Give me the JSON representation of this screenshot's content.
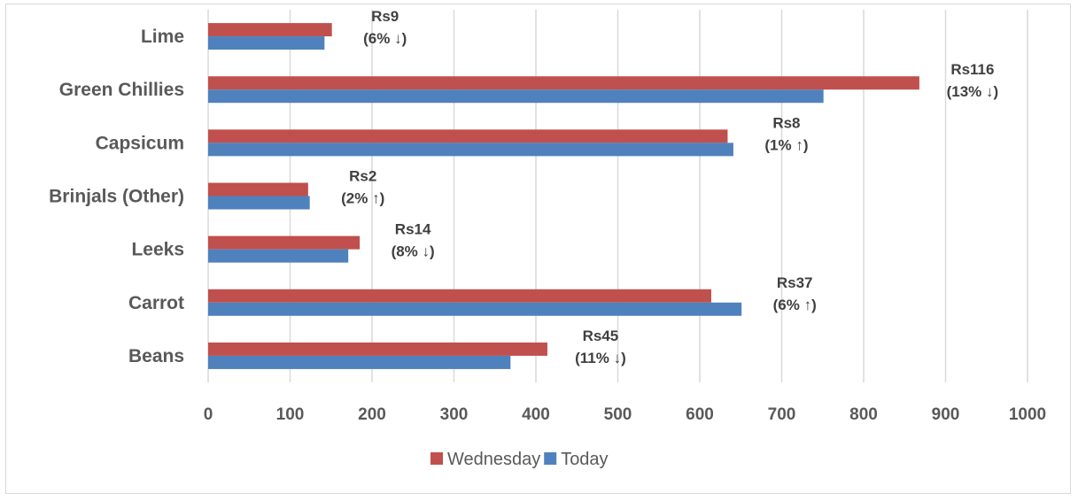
{
  "chart_data": {
    "type": "bar",
    "orientation": "horizontal",
    "categories": [
      "Lime",
      "Green Chillies",
      "Capsicum",
      "Brinjals (Other)",
      "Leeks",
      "Carrot",
      "Beans"
    ],
    "series": [
      {
        "name": "Wednesday",
        "color": "#c0504d",
        "values": [
          151,
          868,
          634,
          122,
          185,
          614,
          414
        ]
      },
      {
        "name": "Today",
        "color": "#4f81bd",
        "values": [
          142,
          751,
          641,
          124,
          171,
          651,
          369
        ]
      }
    ],
    "annotations": [
      {
        "category": "Lime",
        "line1": "Rs9",
        "line2": "(6% ↓)"
      },
      {
        "category": "Green Chillies",
        "line1": "Rs116",
        "line2": "(13% ↓)"
      },
      {
        "category": "Capsicum",
        "line1": "Rs8",
        "line2": "(1% ↑)"
      },
      {
        "category": "Brinjals (Other)",
        "line1": "Rs2",
        "line2": "(2% ↑)"
      },
      {
        "category": "Leeks",
        "line1": "Rs14",
        "line2": "(8% ↓)"
      },
      {
        "category": "Carrot",
        "line1": "Rs37",
        "line2": "(6% ↑)"
      },
      {
        "category": "Beans",
        "line1": "Rs45",
        "line2": "(11% ↓)"
      }
    ],
    "xticks": [
      "0",
      "100",
      "200",
      "300",
      "400",
      "500",
      "600",
      "700",
      "800",
      "900",
      "1000"
    ],
    "xlim": [
      0,
      1000
    ],
    "grid": true,
    "legend_position": "bottom",
    "title": "",
    "xlabel": "",
    "ylabel": ""
  }
}
